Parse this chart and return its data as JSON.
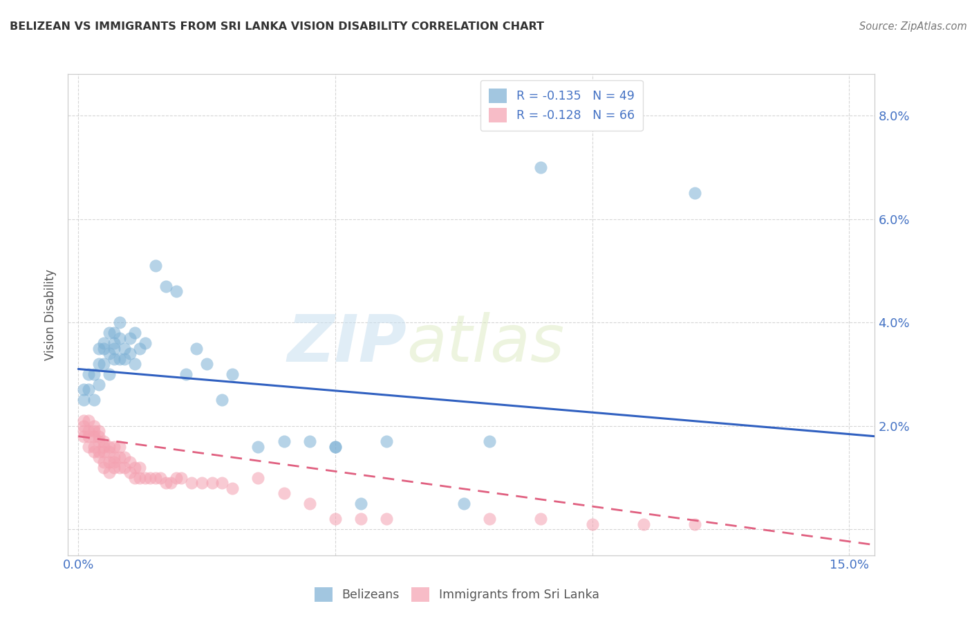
{
  "title": "BELIZEAN VS IMMIGRANTS FROM SRI LANKA VISION DISABILITY CORRELATION CHART",
  "source": "Source: ZipAtlas.com",
  "ylabel": "Vision Disability",
  "xlim": [
    -0.002,
    0.155
  ],
  "ylim": [
    -0.005,
    0.088
  ],
  "xticks": [
    0.0,
    0.05,
    0.1,
    0.15
  ],
  "xticklabels": [
    "0.0%",
    "",
    "",
    "15.0%"
  ],
  "yticks": [
    0.0,
    0.02,
    0.04,
    0.06,
    0.08
  ],
  "yticklabels": [
    "",
    "2.0%",
    "4.0%",
    "6.0%",
    "8.0%"
  ],
  "belizean_color": "#7bafd4",
  "srilanka_color": "#f4a0b0",
  "line_blue": "#3060c0",
  "line_pink": "#e06080",
  "legend_R1": "R = -0.135",
  "legend_N1": "N = 49",
  "legend_R2": "R = -0.128",
  "legend_N2": "N = 66",
  "watermark_zip": "ZIP",
  "watermark_atlas": "atlas",
  "blue_line_x": [
    0.0,
    0.155
  ],
  "blue_line_y": [
    0.031,
    0.018
  ],
  "pink_line_x": [
    0.0,
    0.155
  ],
  "pink_line_y": [
    0.018,
    -0.003
  ],
  "belizean_x": [
    0.001,
    0.001,
    0.002,
    0.002,
    0.003,
    0.003,
    0.004,
    0.004,
    0.004,
    0.005,
    0.005,
    0.005,
    0.006,
    0.006,
    0.006,
    0.007,
    0.007,
    0.007,
    0.007,
    0.008,
    0.008,
    0.008,
    0.009,
    0.009,
    0.01,
    0.01,
    0.011,
    0.011,
    0.012,
    0.013,
    0.015,
    0.017,
    0.019,
    0.021,
    0.023,
    0.025,
    0.028,
    0.03,
    0.035,
    0.04,
    0.045,
    0.05,
    0.055,
    0.06,
    0.075,
    0.09,
    0.12,
    0.05,
    0.08
  ],
  "belizean_y": [
    0.027,
    0.025,
    0.027,
    0.03,
    0.025,
    0.03,
    0.028,
    0.032,
    0.035,
    0.032,
    0.036,
    0.035,
    0.03,
    0.034,
    0.038,
    0.033,
    0.035,
    0.038,
    0.036,
    0.033,
    0.037,
    0.04,
    0.035,
    0.033,
    0.034,
    0.037,
    0.032,
    0.038,
    0.035,
    0.036,
    0.051,
    0.047,
    0.046,
    0.03,
    0.035,
    0.032,
    0.025,
    0.03,
    0.016,
    0.017,
    0.017,
    0.016,
    0.005,
    0.017,
    0.005,
    0.07,
    0.065,
    0.016,
    0.017
  ],
  "srilanka_x": [
    0.001,
    0.001,
    0.001,
    0.001,
    0.002,
    0.002,
    0.002,
    0.002,
    0.003,
    0.003,
    0.003,
    0.003,
    0.003,
    0.004,
    0.004,
    0.004,
    0.004,
    0.004,
    0.005,
    0.005,
    0.005,
    0.005,
    0.005,
    0.006,
    0.006,
    0.006,
    0.006,
    0.007,
    0.007,
    0.007,
    0.007,
    0.008,
    0.008,
    0.008,
    0.009,
    0.009,
    0.01,
    0.01,
    0.011,
    0.011,
    0.012,
    0.012,
    0.013,
    0.014,
    0.015,
    0.016,
    0.017,
    0.018,
    0.019,
    0.02,
    0.022,
    0.024,
    0.026,
    0.028,
    0.03,
    0.035,
    0.04,
    0.045,
    0.05,
    0.055,
    0.06,
    0.08,
    0.09,
    0.1,
    0.11,
    0.12
  ],
  "srilanka_y": [
    0.018,
    0.019,
    0.02,
    0.021,
    0.016,
    0.018,
    0.019,
    0.021,
    0.015,
    0.016,
    0.018,
    0.019,
    0.02,
    0.014,
    0.015,
    0.017,
    0.018,
    0.019,
    0.012,
    0.013,
    0.015,
    0.016,
    0.017,
    0.011,
    0.013,
    0.015,
    0.016,
    0.012,
    0.013,
    0.014,
    0.016,
    0.012,
    0.014,
    0.016,
    0.012,
    0.014,
    0.011,
    0.013,
    0.01,
    0.012,
    0.01,
    0.012,
    0.01,
    0.01,
    0.01,
    0.01,
    0.009,
    0.009,
    0.01,
    0.01,
    0.009,
    0.009,
    0.009,
    0.009,
    0.008,
    0.01,
    0.007,
    0.005,
    0.002,
    0.002,
    0.002,
    0.002,
    0.002,
    0.001,
    0.001,
    0.001
  ]
}
